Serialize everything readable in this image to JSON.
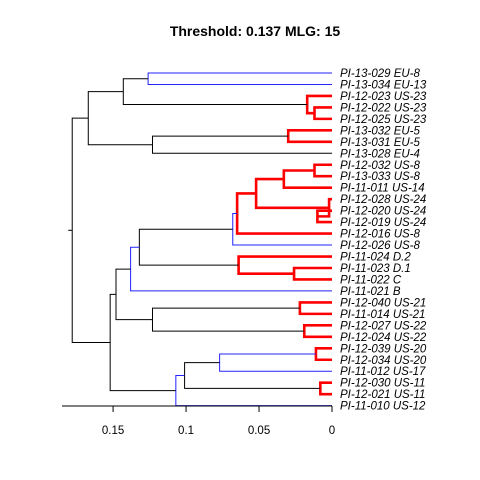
{
  "chart_data": {
    "type": "dendrogram",
    "title": "Threshold: 0.137 MLG: 15",
    "orientation": "horizontal",
    "xlim": [
      0.185,
      0
    ],
    "x_ticks": [
      {
        "value": 0.15,
        "label": "0.15"
      },
      {
        "value": 0.1,
        "label": "0.1"
      },
      {
        "value": 0.05,
        "label": "0.05"
      },
      {
        "value": 0,
        "label": "0"
      }
    ],
    "colors": {
      "black": "#000000",
      "blue": "#2323ff",
      "red": "#ff0000"
    },
    "leaves": [
      "PI-13-029 EU-8",
      "PI-13-034 EU-13",
      "PI-12-023 US-23",
      "PI-12-022 US-23",
      "PI-12-025 US-23",
      "PI-13-032 EU-5",
      "PI-13-031 EU-5",
      "PI-13-028 EU-4",
      "PI-12-032 US-8",
      "PI-13-033 US-8",
      "PI-11-011 US-14",
      "PI-12-028 US-24",
      "PI-12-020 US-24",
      "PI-12-019 US-24",
      "PI-12-016 US-8",
      "PI-12-026 US-8",
      "PI-11-024 D.2",
      "PI-11-023 D.1",
      "PI-11-022 C",
      "PI-11-021 B",
      "PI-12-040 US-21",
      "PI-11-014 US-21",
      "PI-12-027 US-22",
      "PI-12-024 US-22",
      "PI-12-039 US-20",
      "PI-12-034 US-20",
      "PI-11-012 US-17",
      "PI-12-030 US-11",
      "PI-12-021 US-11",
      "PI-11-010 US-12"
    ],
    "merges": [
      {
        "id": "n1",
        "a": 3,
        "b": 4,
        "h": 0.012,
        "color": "red"
      },
      {
        "id": "n2",
        "a": 2,
        "b": "n1",
        "h": 0.017,
        "color": "red"
      },
      {
        "id": "n3",
        "a": 0,
        "b": 1,
        "h": 0.126,
        "color": "blue"
      },
      {
        "id": "n4",
        "a": "n3",
        "b": "n2",
        "h": 0.143,
        "color": "black"
      },
      {
        "id": "n5",
        "a": 5,
        "b": 6,
        "h": 0.03,
        "color": "red"
      },
      {
        "id": "n6",
        "a": "n5",
        "b": 7,
        "h": 0.123,
        "color": "black"
      },
      {
        "id": "n7",
        "a": "n4",
        "b": "n6",
        "h": 0.167,
        "color": "black"
      },
      {
        "id": "n8",
        "a": 8,
        "b": 9,
        "h": 0.012,
        "color": "red"
      },
      {
        "id": "n9",
        "a": "n8",
        "b": 10,
        "h": 0.033,
        "color": "red"
      },
      {
        "id": "n10",
        "a": 12,
        "b": 13,
        "h": 0.01,
        "color": "red"
      },
      {
        "id": "n11",
        "a": 11,
        "b": "n10",
        "h": 0.002,
        "color": "red"
      },
      {
        "id": "n12",
        "a": "n9",
        "b": "n11",
        "h": 0.052,
        "color": "red"
      },
      {
        "id": "n13",
        "a": "n12",
        "b": 14,
        "h": 0.065,
        "color": "red"
      },
      {
        "id": "n14",
        "a": "n13",
        "b": 15,
        "h": 0.068,
        "color": "blue"
      },
      {
        "id": "n15",
        "a": 17,
        "b": 18,
        "h": 0.026,
        "color": "red"
      },
      {
        "id": "n16",
        "a": 16,
        "b": "n15",
        "h": 0.064,
        "color": "red"
      },
      {
        "id": "n17",
        "a": "n14",
        "b": "n16",
        "h": 0.132,
        "color": "black"
      },
      {
        "id": "n18",
        "a": "n17",
        "b": 19,
        "h": 0.138,
        "color": "blue"
      },
      {
        "id": "n19",
        "a": 20,
        "b": 21,
        "h": 0.022,
        "color": "red"
      },
      {
        "id": "n20",
        "a": 22,
        "b": 23,
        "h": 0.019,
        "color": "red"
      },
      {
        "id": "n21",
        "a": "n19",
        "b": "n20",
        "h": 0.123,
        "color": "black"
      },
      {
        "id": "n22",
        "a": "n18",
        "b": "n21",
        "h": 0.148,
        "color": "black"
      },
      {
        "id": "n23",
        "a": 24,
        "b": 25,
        "h": 0.011,
        "color": "red"
      },
      {
        "id": "n24",
        "a": "n23",
        "b": 26,
        "h": 0.077,
        "color": "blue"
      },
      {
        "id": "n25",
        "a": 27,
        "b": 28,
        "h": 0.008,
        "color": "red"
      },
      {
        "id": "n26",
        "a": "n24",
        "b": "n25",
        "h": 0.101,
        "color": "black"
      },
      {
        "id": "n27",
        "a": "n26",
        "b": 29,
        "h": 0.107,
        "color": "blue"
      },
      {
        "id": "n28",
        "a": "n22",
        "b": "n27",
        "h": 0.152,
        "color": "black"
      },
      {
        "id": "n29",
        "a": "n7",
        "b": "n28",
        "h": 0.178,
        "color": "black"
      }
    ]
  }
}
